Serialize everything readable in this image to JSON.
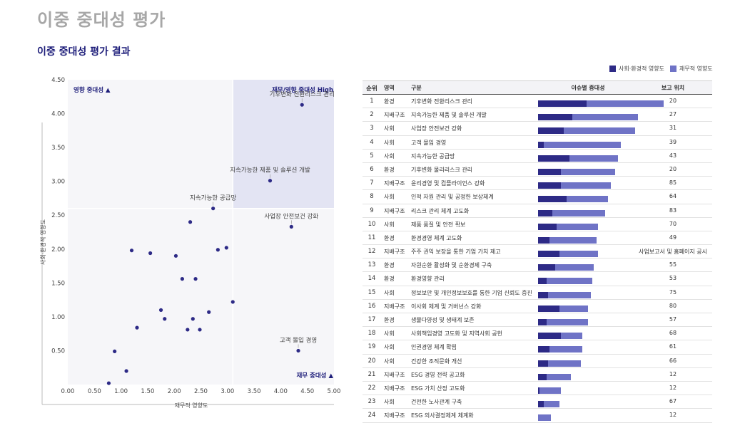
{
  "page_title": "이중 중대성 평가",
  "section_title": "이중 중대성 평가 결과",
  "colors": {
    "social": "#2d2a86",
    "financial": "#6f73c6",
    "quadrant_high": "#e3e4f3",
    "plot_bg": "#f6f6f9",
    "point": "#2d2a86"
  },
  "legend": {
    "social_label": "사회·환경적 영향도",
    "financial_label": "재무적 영향도"
  },
  "chart_data": {
    "type": "scatter",
    "xlabel": "재무적 영향도",
    "ylabel": "사회·환경적 영향도",
    "xlim": [
      0,
      5
    ],
    "ylim": [
      0,
      4.5
    ],
    "xticks": [
      "0.00",
      "0.50",
      "1.00",
      "1.50",
      "2.00",
      "2.50",
      "3.00",
      "3.50",
      "4.00",
      "4.50",
      "5.00"
    ],
    "yticks": [
      "4.50",
      "4.00",
      "3.50",
      "3.00",
      "2.50",
      "2.00",
      "1.50",
      "1.00",
      "0.50"
    ],
    "threshold": {
      "x": 3.1,
      "y": 2.6
    },
    "quadrant_labels": {
      "top_left": "영향 중대성 ▲",
      "top_right": "재무/영향 중대성 High",
      "bottom_right": "재무 중대성 ▲"
    },
    "points": [
      {
        "x": 4.4,
        "y": 4.13,
        "label": "기후변화 전환리스크 관리"
      },
      {
        "x": 3.8,
        "y": 3.01,
        "label": "지속가능한 제품 및 솔루션 개발"
      },
      {
        "x": 2.73,
        "y": 2.6,
        "label": "지속가능한 공급망"
      },
      {
        "x": 4.2,
        "y": 2.33,
        "label": "사업장 안전보건 강화"
      },
      {
        "x": 4.33,
        "y": 0.5,
        "label": "고객 몰입 경영"
      },
      {
        "x": 2.3,
        "y": 2.4,
        "label": ""
      },
      {
        "x": 1.2,
        "y": 1.98,
        "label": ""
      },
      {
        "x": 1.55,
        "y": 1.94,
        "label": ""
      },
      {
        "x": 2.03,
        "y": 1.9,
        "label": ""
      },
      {
        "x": 2.82,
        "y": 1.99,
        "label": ""
      },
      {
        "x": 2.98,
        "y": 2.02,
        "label": ""
      },
      {
        "x": 2.15,
        "y": 1.56,
        "label": ""
      },
      {
        "x": 2.4,
        "y": 1.56,
        "label": ""
      },
      {
        "x": 3.1,
        "y": 1.22,
        "label": ""
      },
      {
        "x": 1.75,
        "y": 1.1,
        "label": ""
      },
      {
        "x": 1.82,
        "y": 0.97,
        "label": ""
      },
      {
        "x": 2.35,
        "y": 0.97,
        "label": ""
      },
      {
        "x": 2.65,
        "y": 1.07,
        "label": ""
      },
      {
        "x": 2.25,
        "y": 0.81,
        "label": ""
      },
      {
        "x": 2.48,
        "y": 0.81,
        "label": ""
      },
      {
        "x": 1.3,
        "y": 0.84,
        "label": ""
      },
      {
        "x": 0.88,
        "y": 0.49,
        "label": ""
      },
      {
        "x": 1.1,
        "y": 0.2,
        "label": ""
      },
      {
        "x": 0.77,
        "y": 0.02,
        "label": ""
      }
    ]
  },
  "table": {
    "headers": {
      "rank": "순위",
      "area": "영역",
      "name": "구분",
      "bar": "이슈별 중대성",
      "pos": "보고 위치"
    },
    "rows": [
      {
        "rank": "1",
        "area": "환경",
        "name": "기후변화 전환리스크 관리",
        "social": 0.34,
        "financial": 0.54,
        "pos": "20"
      },
      {
        "rank": "2",
        "area": "지배구조",
        "name": "지속가능한 제품 및 솔루션 개발",
        "social": 0.24,
        "financial": 0.46,
        "pos": "27"
      },
      {
        "rank": "3",
        "area": "사회",
        "name": "사업장 안전보건 강화",
        "social": 0.18,
        "financial": 0.5,
        "pos": "31"
      },
      {
        "rank": "4",
        "area": "사회",
        "name": "고객 몰입 경영",
        "social": 0.04,
        "financial": 0.54,
        "pos": "39"
      },
      {
        "rank": "5",
        "area": "사회",
        "name": "지속가능한 공급망",
        "social": 0.22,
        "financial": 0.34,
        "pos": "43"
      },
      {
        "rank": "6",
        "area": "환경",
        "name": "기후변화 물리리스크 관리",
        "social": 0.16,
        "financial": 0.38,
        "pos": "20"
      },
      {
        "rank": "7",
        "area": "지배구조",
        "name": "윤리경영 및 컴플라이언스 강화",
        "social": 0.16,
        "financial": 0.35,
        "pos": "85"
      },
      {
        "rank": "8",
        "area": "사회",
        "name": "인적 자원 관리 및 공정한 보상체계",
        "social": 0.2,
        "financial": 0.29,
        "pos": "64"
      },
      {
        "rank": "9",
        "area": "지배구조",
        "name": "리스크 관리 체계 고도화",
        "social": 0.1,
        "financial": 0.37,
        "pos": "83"
      },
      {
        "rank": "10",
        "area": "사회",
        "name": "제품 품질 및 안전 확보",
        "social": 0.13,
        "financial": 0.29,
        "pos": "70"
      },
      {
        "rank": "11",
        "area": "환경",
        "name": "환경경영 체계 고도화",
        "social": 0.08,
        "financial": 0.33,
        "pos": "49"
      },
      {
        "rank": "12",
        "area": "지배구조",
        "name": "주주 권익 보장을 통한 기업 가치 제고",
        "social": 0.15,
        "financial": 0.27,
        "pos": "사업보고서 및 홈페이지 공시"
      },
      {
        "rank": "13",
        "area": "환경",
        "name": "자원순환 활성화 및 순환경제 구축",
        "social": 0.12,
        "financial": 0.27,
        "pos": "55"
      },
      {
        "rank": "14",
        "area": "환경",
        "name": "환경영향 관리",
        "social": 0.06,
        "financial": 0.32,
        "pos": "53"
      },
      {
        "rank": "15",
        "area": "사회",
        "name": "정보보안 및 개인정보보호를 통한 기업 신뢰도 증진",
        "social": 0.07,
        "financial": 0.3,
        "pos": "75"
      },
      {
        "rank": "16",
        "area": "지배구조",
        "name": "이사회 체계 및 거버넌스 강화",
        "social": 0.15,
        "financial": 0.2,
        "pos": "80"
      },
      {
        "rank": "17",
        "area": "환경",
        "name": "생물다양성 및 생태계 보존",
        "social": 0.06,
        "financial": 0.29,
        "pos": "57"
      },
      {
        "rank": "18",
        "area": "사회",
        "name": "사회책임경영 고도화 및 지역사회 공헌",
        "social": 0.16,
        "financial": 0.15,
        "pos": "68"
      },
      {
        "rank": "19",
        "area": "사회",
        "name": "인권경영 체계 확립",
        "social": 0.08,
        "financial": 0.23,
        "pos": "61"
      },
      {
        "rank": "20",
        "area": "사회",
        "name": "건강한 조직문화 개선",
        "social": 0.07,
        "financial": 0.23,
        "pos": "66"
      },
      {
        "rank": "21",
        "area": "지배구조",
        "name": "ESG 경영 전략 공고화",
        "social": 0.06,
        "financial": 0.17,
        "pos": "12"
      },
      {
        "rank": "22",
        "area": "지배구조",
        "name": "ESG 가치 산정 고도화",
        "social": 0.01,
        "financial": 0.15,
        "pos": "12"
      },
      {
        "rank": "23",
        "area": "사회",
        "name": "건전한 노사관계 구축",
        "social": 0.04,
        "financial": 0.11,
        "pos": "67"
      },
      {
        "rank": "24",
        "area": "지배구조",
        "name": "ESG 의사결정체계 체계화",
        "social": 0.0,
        "financial": 0.09,
        "pos": "12"
      }
    ]
  }
}
